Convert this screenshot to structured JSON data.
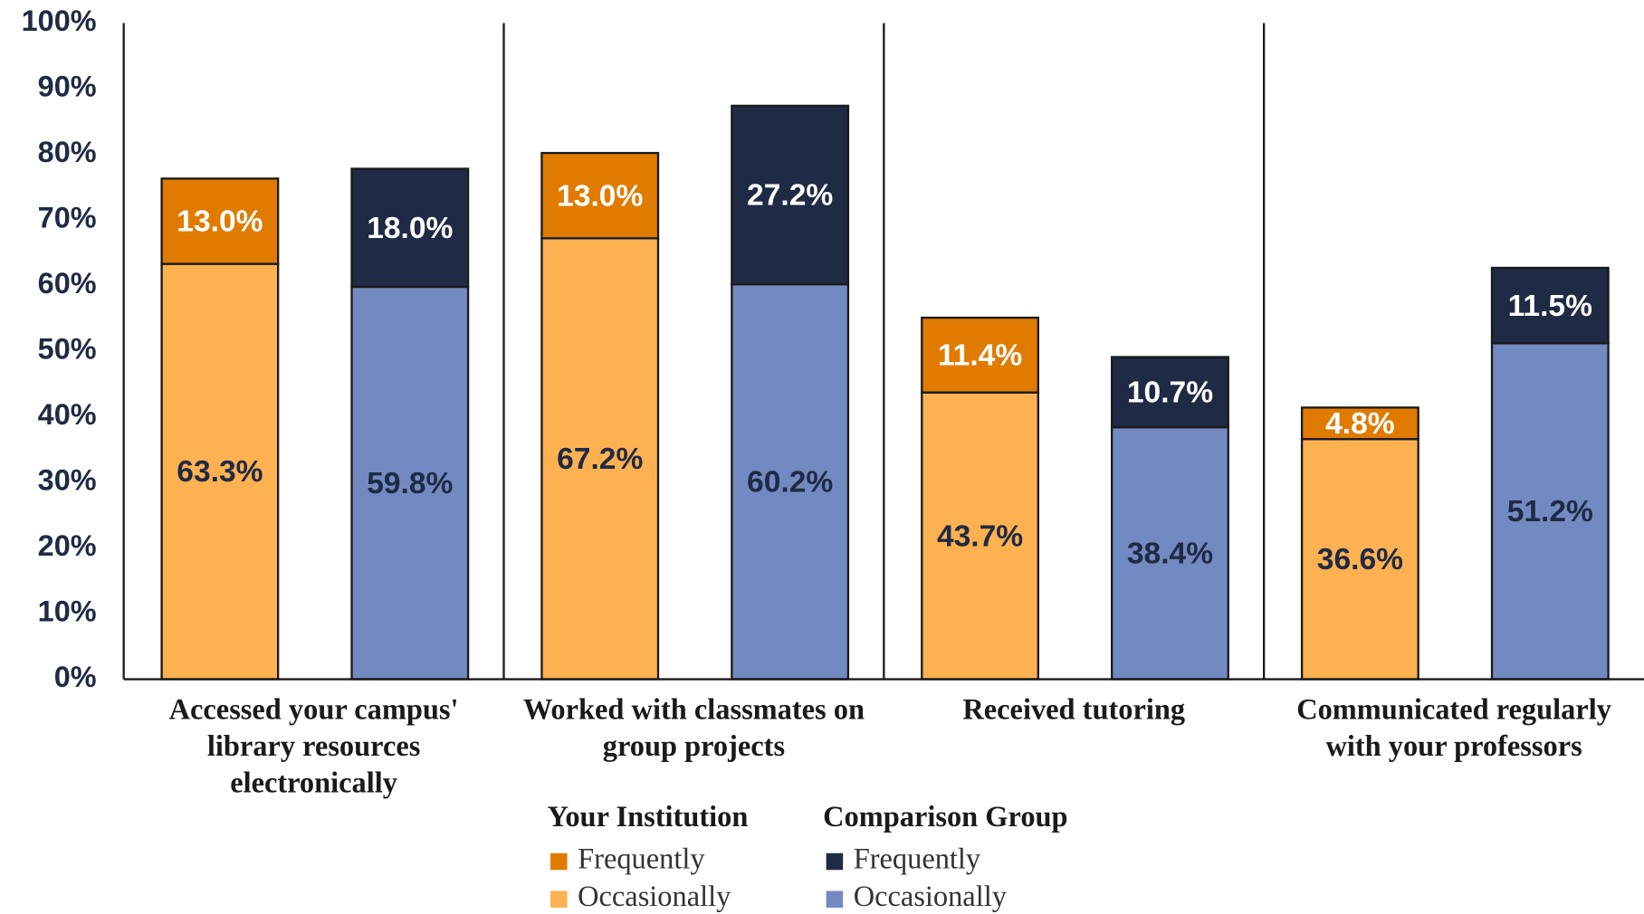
{
  "chart_data": {
    "type": "grouped-stacked-bar",
    "categories": [
      "Accessed your campus' library resources electronically",
      "Worked with classmates on group projects",
      "Received tutoring",
      "Communicated regularly with your professors"
    ],
    "groups": [
      {
        "name": "Your Institution",
        "series": [
          {
            "name": "Occasionally",
            "color": "#fdb150",
            "label_color": "#1f2a44",
            "values": [
              63.3,
              67.2,
              43.7,
              36.6
            ],
            "value_labels": [
              "63.3%",
              "67.2%",
              "43.7%",
              "36.6%"
            ]
          },
          {
            "name": "Frequently",
            "color": "#e07b00",
            "label_color": "#ffffff",
            "values": [
              13.0,
              13.0,
              11.4,
              4.8
            ],
            "value_labels": [
              "13.0%",
              "13.0%",
              "11.4%",
              "4.8%"
            ]
          }
        ]
      },
      {
        "name": "Comparison Group",
        "series": [
          {
            "name": "Occasionally",
            "color": "#7389c1",
            "label_color": "#1f2a44",
            "values": [
              59.8,
              60.2,
              38.4,
              51.2
            ],
            "value_labels": [
              "59.8%",
              "60.2%",
              "38.4%",
              "51.2%"
            ]
          },
          {
            "name": "Frequently",
            "color": "#1f2a44",
            "label_color": "#ffffff",
            "values": [
              18.0,
              27.2,
              10.7,
              11.5
            ],
            "value_labels": [
              "18.0%",
              "27.2%",
              "10.7%",
              "11.5%"
            ]
          }
        ]
      }
    ],
    "ylim": [
      0,
      100
    ],
    "yticks": [
      {
        "value": 0,
        "label": "0%"
      },
      {
        "value": 10,
        "label": "10%"
      },
      {
        "value": 20,
        "label": "20%"
      },
      {
        "value": 30,
        "label": "30%"
      },
      {
        "value": 40,
        "label": "40%"
      },
      {
        "value": 50,
        "label": "50%"
      },
      {
        "value": 60,
        "label": "60%"
      },
      {
        "value": 70,
        "label": "70%"
      },
      {
        "value": 80,
        "label": "80%"
      },
      {
        "value": 90,
        "label": "90%"
      },
      {
        "value": 100,
        "label": "100%"
      }
    ]
  }
}
